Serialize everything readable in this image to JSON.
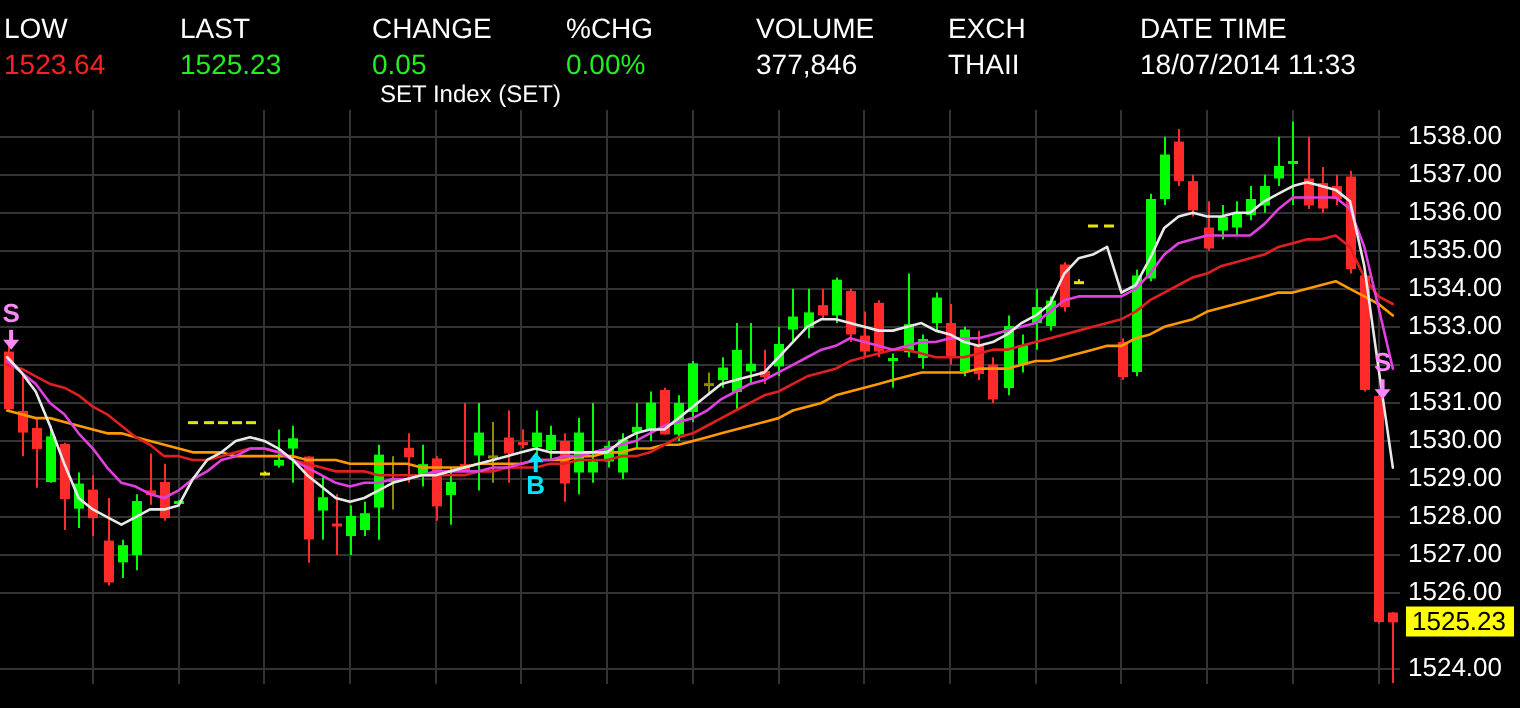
{
  "chart_data": {
    "type": "candlestick",
    "title": "SET Index (SET)",
    "annotations": [
      "LOW",
      "1523.64",
      "LAST",
      "1525.23",
      "CHANGE",
      "0.05",
      "%CHG",
      "0.00%",
      "VOLUME",
      "377,846",
      "EXCH",
      "THAII",
      "DATE TIME",
      "18/07/2014 11:33",
      "S",
      "B",
      "S",
      "1525.23"
    ],
    "categories": [
      null,
      null,
      null,
      null,
      null,
      null,
      null,
      null,
      null,
      null,
      null,
      null,
      null,
      null,
      null,
      null,
      null,
      null,
      null,
      null,
      null,
      null,
      null,
      null,
      null,
      null,
      null,
      null,
      null,
      null,
      null,
      null,
      null,
      null,
      null,
      null,
      null,
      null,
      null,
      null,
      null,
      null,
      null,
      null,
      null,
      null,
      null,
      null,
      null,
      null,
      null,
      null,
      null,
      null,
      null,
      null,
      null,
      null,
      null,
      null,
      null,
      null,
      null,
      null,
      null,
      null,
      null,
      null,
      null,
      null,
      null,
      null,
      null,
      null,
      null,
      null,
      null,
      null,
      null,
      null,
      null,
      null,
      null,
      null,
      null,
      null,
      null,
      null,
      null,
      null,
      null,
      null,
      null,
      null,
      null,
      null,
      null,
      null
    ],
    "ohlc": [
      [
        1532.35,
        1532.5,
        1530.8,
        1530.84
      ],
      [
        1530.79,
        1531.78,
        1529.6,
        1530.22
      ],
      [
        1530.34,
        1530.6,
        1528.77,
        1529.79
      ],
      [
        1528.92,
        1530.4,
        1528.9,
        1530.12
      ],
      [
        1529.92,
        1529.95,
        1527.66,
        1528.47
      ],
      [
        1528.22,
        1529.17,
        1527.71,
        1528.88
      ],
      [
        1528.72,
        1529.1,
        1527.5,
        1527.97
      ],
      [
        1527.38,
        1528.5,
        1526.2,
        1526.28
      ],
      [
        1526.81,
        1527.4,
        1526.4,
        1527.26
      ],
      [
        1527.0,
        1528.6,
        1526.6,
        1528.42
      ],
      [
        1528.7,
        1529.67,
        1528.32,
        1528.58
      ],
      [
        1528.92,
        1529.4,
        1527.9,
        1527.97
      ],
      [
        1528.38,
        1528.45,
        1528.35,
        1528.42
      ],
      [
        1530.52,
        1530.52,
        1530.52,
        1530.52
      ],
      [
        1530.52,
        1530.52,
        1530.52,
        1530.52
      ],
      [
        1530.52,
        1530.52,
        1530.52,
        1530.52
      ],
      [
        1530.52,
        1530.52,
        1530.52,
        1530.52
      ],
      [
        1530.52,
        1530.52,
        1530.52,
        1530.52
      ],
      [
        1529.15,
        1529.2,
        1529.1,
        1529.17
      ],
      [
        1529.35,
        1530.3,
        1529.3,
        1529.5
      ],
      [
        1529.8,
        1530.4,
        1528.9,
        1530.07
      ],
      [
        1529.59,
        1529.6,
        1526.8,
        1527.41
      ],
      [
        1528.17,
        1529.1,
        1527.4,
        1528.52
      ],
      [
        1527.83,
        1528.6,
        1527.0,
        1527.75
      ],
      [
        1527.5,
        1528.3,
        1527.0,
        1528.03
      ],
      [
        1527.66,
        1528.4,
        1527.5,
        1528.1
      ],
      [
        1528.25,
        1529.9,
        1527.4,
        1529.64
      ],
      [
        1529.0,
        1529.6,
        1528.2,
        1529.0
      ],
      [
        1529.82,
        1530.2,
        1528.9,
        1529.57
      ],
      [
        1529.08,
        1529.9,
        1528.8,
        1529.39
      ],
      [
        1529.54,
        1529.6,
        1527.9,
        1528.28
      ],
      [
        1528.58,
        1529.3,
        1527.8,
        1528.92
      ],
      [
        1529.39,
        1531.0,
        1529.2,
        1529.22
      ],
      [
        1529.62,
        1531.0,
        1528.7,
        1530.22
      ],
      [
        1529.6,
        1530.5,
        1528.9,
        1529.62
      ],
      [
        1530.09,
        1530.8,
        1528.9,
        1529.67
      ],
      [
        1529.97,
        1530.3,
        1529.8,
        1529.92
      ],
      [
        1529.84,
        1530.8,
        1529.6,
        1530.22
      ],
      [
        1529.76,
        1530.4,
        1529.5,
        1530.16
      ],
      [
        1530.0,
        1530.2,
        1528.4,
        1528.88
      ],
      [
        1529.17,
        1530.6,
        1528.6,
        1530.22
      ],
      [
        1529.17,
        1531.0,
        1528.9,
        1529.46
      ],
      [
        1529.46,
        1530.0,
        1529.3,
        1529.87
      ],
      [
        1529.17,
        1530.2,
        1529.0,
        1530.04
      ],
      [
        1530.22,
        1531.0,
        1529.8,
        1530.37
      ],
      [
        1530.26,
        1531.3,
        1530.0,
        1531.01
      ],
      [
        1531.34,
        1531.4,
        1530.17,
        1530.17
      ],
      [
        1530.17,
        1531.2,
        1530.0,
        1531.0
      ],
      [
        1530.76,
        1532.1,
        1530.5,
        1532.04
      ],
      [
        1531.5,
        1531.8,
        1531.2,
        1531.52
      ],
      [
        1531.6,
        1532.2,
        1531.4,
        1531.93
      ],
      [
        1531.29,
        1533.1,
        1530.8,
        1532.39
      ],
      [
        1531.83,
        1533.1,
        1531.5,
        1532.03
      ],
      [
        1531.84,
        1532.4,
        1531.5,
        1531.68
      ],
      [
        1531.96,
        1533.0,
        1531.7,
        1532.55
      ],
      [
        1532.93,
        1534.0,
        1532.6,
        1533.27
      ],
      [
        1532.97,
        1534.0,
        1532.7,
        1533.38
      ],
      [
        1533.57,
        1534.0,
        1533.2,
        1533.3
      ],
      [
        1533.3,
        1534.3,
        1533.1,
        1534.24
      ],
      [
        1533.94,
        1534.0,
        1532.6,
        1532.8
      ],
      [
        1532.77,
        1533.4,
        1532.2,
        1532.35
      ],
      [
        1533.63,
        1533.7,
        1532.2,
        1532.35
      ],
      [
        1532.1,
        1532.3,
        1531.4,
        1532.18
      ],
      [
        1532.33,
        1534.4,
        1532.2,
        1533.07
      ],
      [
        1532.18,
        1532.8,
        1531.9,
        1532.68
      ],
      [
        1533.1,
        1533.9,
        1532.9,
        1533.77
      ],
      [
        1533.1,
        1533.6,
        1532.0,
        1532.18
      ],
      [
        1531.84,
        1533.0,
        1531.7,
        1532.93
      ],
      [
        1532.52,
        1532.9,
        1531.6,
        1531.76
      ],
      [
        1532.01,
        1532.2,
        1531.0,
        1531.09
      ],
      [
        1531.39,
        1533.3,
        1531.2,
        1533.02
      ],
      [
        1532.01,
        1532.8,
        1531.8,
        1532.52
      ],
      [
        1533.1,
        1534.0,
        1532.4,
        1533.52
      ],
      [
        1533.02,
        1533.8,
        1532.9,
        1533.69
      ],
      [
        1534.64,
        1534.7,
        1533.4,
        1533.52
      ],
      [
        1534.2,
        1534.25,
        1534.15,
        1534.2
      ],
      [
        1535.69,
        1535.69,
        1535.69,
        1535.69
      ],
      [
        1535.69,
        1535.69,
        1535.69,
        1535.69
      ],
      [
        1532.6,
        1532.7,
        1531.6,
        1531.68
      ],
      [
        1531.81,
        1534.5,
        1531.7,
        1534.35
      ],
      [
        1534.27,
        1536.5,
        1534.2,
        1536.36
      ],
      [
        1536.36,
        1538.0,
        1536.2,
        1537.53
      ],
      [
        1537.87,
        1538.2,
        1536.7,
        1536.83
      ],
      [
        1536.83,
        1537.0,
        1535.9,
        1536.06
      ],
      [
        1535.61,
        1536.3,
        1535.0,
        1535.06
      ],
      [
        1535.53,
        1536.2,
        1535.3,
        1535.89
      ],
      [
        1535.61,
        1536.3,
        1535.4,
        1535.97
      ],
      [
        1535.94,
        1536.7,
        1535.8,
        1536.36
      ],
      [
        1536.19,
        1537.0,
        1536.0,
        1536.7
      ],
      [
        1536.9,
        1538.0,
        1536.7,
        1537.23
      ],
      [
        1537.3,
        1538.4,
        1536.2,
        1537.36
      ],
      [
        1536.9,
        1538.0,
        1536.1,
        1536.19
      ],
      [
        1536.78,
        1537.2,
        1536.0,
        1536.11
      ],
      [
        1536.7,
        1537.0,
        1536.2,
        1536.36
      ],
      [
        1536.95,
        1537.1,
        1534.4,
        1534.52
      ],
      [
        1534.35,
        1534.4,
        1531.3,
        1531.34
      ],
      [
        1531.18,
        1531.2,
        1525.2,
        1525.24
      ],
      [
        1525.49,
        1525.5,
        1523.64,
        1525.23
      ]
    ],
    "colors": [
      "#ff2b2b",
      "#ff2b2b",
      "#ff2b2b",
      "#00ff00",
      "#ff2b2b",
      "#00ff00",
      "#ff2b2b",
      "#ff2b2b",
      "#00ff00",
      "#00ff00",
      "#ff2b2b",
      "#ff2b2b",
      "#00ff00",
      "#e6e600",
      "#e6e600",
      "#e6e600",
      "#e6e600",
      "#e6e600",
      "#e6e600",
      "#00ff00",
      "#00ff00",
      "#ff2b2b",
      "#00ff00",
      "#ff2b2b",
      "#00ff00",
      "#00ff00",
      "#00ff00",
      "#8c8c00",
      "#ff2b2b",
      "#00ff00",
      "#ff2b2b",
      "#00ff00",
      "#ff2b2b",
      "#00ff00",
      "#8c8c00",
      "#ff2b2b",
      "#ff2b2b",
      "#00ff00",
      "#00ff00",
      "#ff2b2b",
      "#00ff00",
      "#00ff00",
      "#00ff00",
      "#00ff00",
      "#00ff00",
      "#00ff00",
      "#ff2b2b",
      "#00ff00",
      "#00ff00",
      "#8c8c00",
      "#00ff00",
      "#00ff00",
      "#00ff00",
      "#ff2b2b",
      "#00ff00",
      "#00ff00",
      "#00ff00",
      "#ff2b2b",
      "#00ff00",
      "#ff2b2b",
      "#ff2b2b",
      "#ff2b2b",
      "#00ff00",
      "#00ff00",
      "#00ff00",
      "#00ff00",
      "#ff2b2b",
      "#00ff00",
      "#ff2b2b",
      "#ff2b2b",
      "#00ff00",
      "#00ff00",
      "#00ff00",
      "#00ff00",
      "#ff2b2b",
      "#e6e600",
      "#e6e600",
      "#e6e600",
      "#ff2b2b",
      "#00ff00",
      "#00ff00",
      "#00ff00",
      "#ff2b2b",
      "#ff2b2b",
      "#ff2b2b",
      "#00ff00",
      "#00ff00",
      "#00ff00",
      "#00ff00",
      "#00ff00",
      "#00ff00",
      "#ff2b2b",
      "#ff2b2b",
      "#ff2b2b",
      "#ff2b2b",
      "#ff2b2b",
      "#ff2b2b",
      "#ff2b2b"
    ],
    "series": [
      {
        "type": "line",
        "color": "#e8e8e8",
        "values": [
          1532.2,
          1531.8,
          1531.3,
          1530.4,
          1529.4,
          1528.5,
          1528.2,
          1528.0,
          1527.8,
          1528.0,
          1528.2,
          1528.2,
          1528.3,
          1529.0,
          1529.5,
          1529.7,
          1530.0,
          1530.1,
          1530.0,
          1529.8,
          1529.5,
          1529.1,
          1528.8,
          1528.5,
          1528.4,
          1528.5,
          1528.7,
          1528.9,
          1529.0,
          1529.1,
          1529.1,
          1529.2,
          1529.3,
          1529.4,
          1529.5,
          1529.6,
          1529.7,
          1529.8,
          1529.7,
          1529.7,
          1529.7,
          1529.7,
          1529.7,
          1530.0,
          1530.2,
          1530.3,
          1530.3,
          1530.6,
          1530.9,
          1531.2,
          1531.5,
          1531.6,
          1531.7,
          1531.8,
          1532.2,
          1532.6,
          1533.0,
          1533.2,
          1533.2,
          1533.1,
          1533.0,
          1532.9,
          1532.9,
          1533.0,
          1533.1,
          1532.9,
          1532.8,
          1532.6,
          1532.5,
          1532.6,
          1532.8,
          1533.1,
          1533.3,
          1533.6,
          1534.4,
          1534.8,
          1534.9,
          1535.1,
          1533.9,
          1534.1,
          1534.8,
          1535.6,
          1535.9,
          1536.0,
          1535.9,
          1535.9,
          1536.0,
          1536.0,
          1536.3,
          1536.5,
          1536.7,
          1536.8,
          1536.7,
          1536.6,
          1536.3,
          1534.6,
          1531.9,
          1529.3
        ]
      },
      {
        "type": "line",
        "color": "#e040e0",
        "values": [
          1532.1,
          1531.8,
          1531.5,
          1531.0,
          1530.7,
          1530.2,
          1529.8,
          1529.3,
          1528.9,
          1528.8,
          1528.6,
          1528.5,
          1528.7,
          1529.0,
          1529.2,
          1529.5,
          1529.6,
          1529.8,
          1529.8,
          1529.7,
          1529.5,
          1529.3,
          1529.1,
          1528.9,
          1528.8,
          1528.9,
          1528.9,
          1529.0,
          1529.0,
          1529.1,
          1529.2,
          1529.2,
          1529.2,
          1529.2,
          1529.3,
          1529.3,
          1529.4,
          1529.5,
          1529.5,
          1529.6,
          1529.6,
          1529.7,
          1529.8,
          1529.9,
          1530.0,
          1530.2,
          1530.4,
          1530.5,
          1530.6,
          1530.8,
          1531.1,
          1531.3,
          1531.5,
          1531.6,
          1531.8,
          1532.0,
          1532.2,
          1532.4,
          1532.5,
          1532.7,
          1532.6,
          1532.5,
          1532.4,
          1532.5,
          1532.6,
          1532.6,
          1532.7,
          1532.7,
          1532.7,
          1532.8,
          1532.9,
          1533.0,
          1533.1,
          1533.4,
          1533.7,
          1533.8,
          1533.8,
          1533.8,
          1533.8,
          1534.0,
          1534.4,
          1534.9,
          1535.2,
          1535.3,
          1535.4,
          1535.4,
          1535.4,
          1535.4,
          1535.7,
          1536.1,
          1536.4,
          1536.4,
          1536.4,
          1536.4,
          1536.1,
          1535.1,
          1533.5,
          1531.9
        ]
      },
      {
        "type": "line",
        "color": "#e02020",
        "values": [
          1532.0,
          1531.9,
          1531.7,
          1531.5,
          1531.4,
          1531.2,
          1530.9,
          1530.7,
          1530.4,
          1530.1,
          1529.9,
          1529.6,
          1529.6,
          1529.5,
          1529.5,
          1529.6,
          1529.7,
          1529.8,
          1529.8,
          1529.7,
          1529.5,
          1529.4,
          1529.3,
          1529.2,
          1529.2,
          1529.2,
          1529.1,
          1529.1,
          1529.1,
          1529.1,
          1529.1,
          1529.1,
          1529.1,
          1529.2,
          1529.2,
          1529.3,
          1529.3,
          1529.3,
          1529.4,
          1529.4,
          1529.5,
          1529.5,
          1529.5,
          1529.6,
          1529.6,
          1529.7,
          1529.9,
          1530.1,
          1530.2,
          1530.4,
          1530.6,
          1530.8,
          1531.0,
          1531.2,
          1531.3,
          1531.5,
          1531.7,
          1531.8,
          1531.9,
          1532.1,
          1532.2,
          1532.3,
          1532.4,
          1532.4,
          1532.3,
          1532.2,
          1532.2,
          1532.2,
          1532.3,
          1532.4,
          1532.4,
          1532.5,
          1532.6,
          1532.7,
          1532.8,
          1532.9,
          1533.0,
          1533.1,
          1533.2,
          1533.4,
          1533.7,
          1533.9,
          1534.1,
          1534.3,
          1534.4,
          1534.6,
          1534.7,
          1534.8,
          1534.9,
          1535.1,
          1535.2,
          1535.3,
          1535.3,
          1535.4,
          1535.1,
          1534.3,
          1533.8,
          1533.6
        ]
      },
      {
        "type": "line",
        "color": "#ff9900",
        "values": [
          1530.8,
          1530.7,
          1530.6,
          1530.6,
          1530.5,
          1530.4,
          1530.3,
          1530.2,
          1530.2,
          1530.1,
          1530.0,
          1529.9,
          1529.8,
          1529.7,
          1529.7,
          1529.7,
          1529.6,
          1529.6,
          1529.6,
          1529.6,
          1529.6,
          1529.5,
          1529.5,
          1529.5,
          1529.4,
          1529.4,
          1529.4,
          1529.4,
          1529.4,
          1529.3,
          1529.3,
          1529.3,
          1529.3,
          1529.4,
          1529.4,
          1529.4,
          1529.4,
          1529.5,
          1529.5,
          1529.5,
          1529.6,
          1529.6,
          1529.7,
          1529.7,
          1529.8,
          1529.8,
          1529.9,
          1529.9,
          1530.0,
          1530.1,
          1530.2,
          1530.3,
          1530.4,
          1530.5,
          1530.6,
          1530.8,
          1530.9,
          1531.0,
          1531.2,
          1531.3,
          1531.4,
          1531.5,
          1531.6,
          1531.7,
          1531.8,
          1531.8,
          1531.8,
          1531.8,
          1531.9,
          1531.9,
          1531.9,
          1532.0,
          1532.1,
          1532.1,
          1532.2,
          1532.3,
          1532.4,
          1532.5,
          1532.5,
          1532.7,
          1532.8,
          1533.0,
          1533.1,
          1533.2,
          1533.4,
          1533.5,
          1533.6,
          1533.7,
          1533.8,
          1533.9,
          1533.9,
          1534.0,
          1534.1,
          1534.2,
          1534.0,
          1533.8,
          1533.6,
          1533.3
        ]
      }
    ],
    "ylim": [
      1523.6,
      1538.7
    ],
    "yticks": [
      {
        "value": 1524,
        "label": "1524.00"
      },
      {
        "value": 1526,
        "label": "1526.00"
      },
      {
        "value": 1527,
        "label": "1527.00"
      },
      {
        "value": 1528,
        "label": "1528.00"
      },
      {
        "value": 1529,
        "label": "1529.00"
      },
      {
        "value": 1530,
        "label": "1530.00"
      },
      {
        "value": 1531,
        "label": "1531.00"
      },
      {
        "value": 1532,
        "label": "1532.00"
      },
      {
        "value": 1533,
        "label": "1533.00"
      },
      {
        "value": 1534,
        "label": "1534.00"
      },
      {
        "value": 1535,
        "label": "1535.00"
      },
      {
        "value": 1536,
        "label": "1536.00"
      },
      {
        "value": 1537,
        "label": "1537.00"
      },
      {
        "value": 1538,
        "label": "1538.00"
      }
    ],
    "grid": true,
    "legend": false,
    "tick_labels": "y",
    "marker": "none"
  }
}
